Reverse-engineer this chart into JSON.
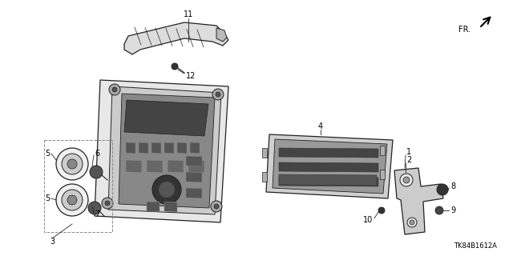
{
  "bg_color": "#ffffff",
  "diagram_code": "TK84B1612A",
  "fr_label": "FR.",
  "line_color": "#222222",
  "lw_main": 0.9,
  "font_size": 7.0
}
